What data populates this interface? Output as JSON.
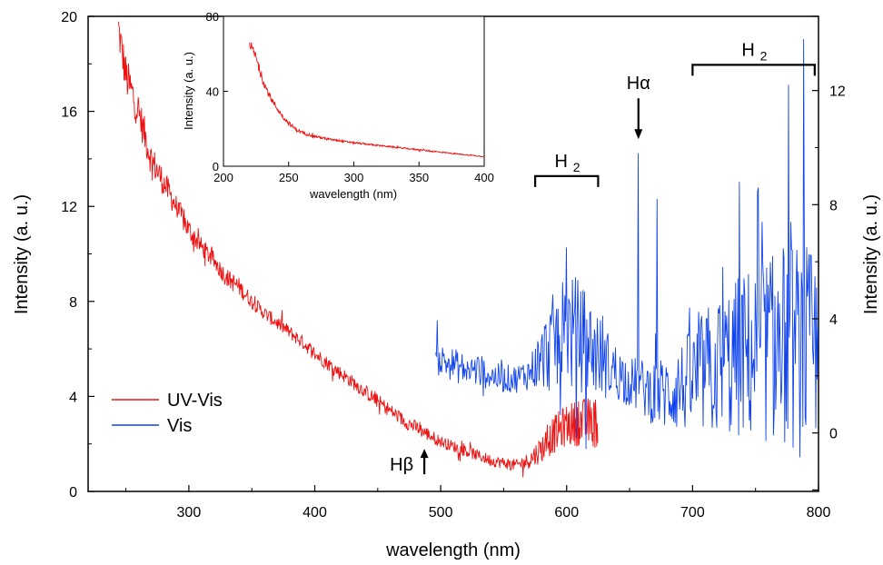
{
  "chart_data": [
    {
      "type": "line",
      "xlabel": "wavelength (nm)",
      "ylabel": "Intensity (a. u.)",
      "ylabel_right": "Intensity (a. u.)",
      "xlim": [
        220,
        800
      ],
      "ylim": [
        0,
        20
      ],
      "ylim_right": [
        -2.05,
        14.6
      ],
      "x_ticks": [
        300,
        400,
        500,
        600,
        700,
        800
      ],
      "y_ticks": [
        0,
        4,
        8,
        12,
        16,
        20
      ],
      "y_ticks_right": [
        0,
        4,
        8,
        12
      ],
      "legend_position": "bottom-left",
      "legend": [
        "UV-Vis",
        "Vis"
      ],
      "series": [
        {
          "name": "UV-Vis",
          "axis": "left",
          "color": "#ee1111",
          "x": [
            244,
            250,
            260,
            270,
            280,
            290,
            300,
            310,
            320,
            330,
            340,
            350,
            360,
            370,
            380,
            390,
            400,
            410,
            420,
            430,
            440,
            450,
            460,
            470,
            480,
            490,
            500,
            510,
            520,
            530,
            540,
            550,
            560,
            570,
            580,
            590,
            600,
            610,
            620,
            625
          ],
          "values": [
            19.5,
            17.5,
            16.0,
            14.0,
            13.0,
            12.0,
            11.0,
            10.3,
            9.7,
            9.0,
            8.6,
            8.0,
            7.5,
            7.1,
            6.7,
            6.3,
            5.8,
            5.4,
            5.0,
            4.6,
            4.2,
            3.8,
            3.4,
            3.0,
            2.7,
            2.4,
            2.1,
            1.9,
            1.7,
            1.5,
            1.3,
            1.2,
            1.1,
            1.3,
            1.8,
            2.4,
            2.8,
            2.9,
            2.9,
            2.9
          ],
          "noise_amplitude": [
            0.9,
            0.9,
            0.8,
            0.7,
            0.6,
            0.5,
            0.5,
            0.4,
            0.4,
            0.4,
            0.4,
            0.3,
            0.3,
            0.3,
            0.3,
            0.3,
            0.3,
            0.3,
            0.3,
            0.3,
            0.3,
            0.3,
            0.3,
            0.3,
            0.3,
            0.3,
            0.25,
            0.25,
            0.25,
            0.25,
            0.25,
            0.25,
            0.25,
            0.35,
            0.6,
            0.8,
            0.9,
            1.0,
            1.1,
            1.1
          ]
        },
        {
          "name": "Vis",
          "axis": "right",
          "color": "#1144ee",
          "x": [
            496,
            510,
            520,
            530,
            540,
            550,
            560,
            570,
            580,
            590,
            600,
            610,
            620,
            630,
            640,
            650,
            660,
            670,
            680,
            690,
            700,
            710,
            720,
            730,
            740,
            750,
            760,
            770,
            780,
            790,
            800
          ],
          "values": [
            2.6,
            2.4,
            2.2,
            2.2,
            2.0,
            1.9,
            1.9,
            2.1,
            2.6,
            3.2,
            3.6,
            3.4,
            3.0,
            2.5,
            2.1,
            1.8,
            1.6,
            1.4,
            1.4,
            1.6,
            1.8,
            2.1,
            2.3,
            2.5,
            2.7,
            2.8,
            3.0,
            3.1,
            3.0,
            2.8,
            2.7
          ],
          "noise_amplitude": [
            0.6,
            0.6,
            0.6,
            0.6,
            0.5,
            0.5,
            0.5,
            0.6,
            1.2,
            1.8,
            2.2,
            2.0,
            1.7,
            1.3,
            1.0,
            0.9,
            1.0,
            1.2,
            1.4,
            1.6,
            1.9,
            2.3,
            2.6,
            2.8,
            3.0,
            3.2,
            3.4,
            3.6,
            3.8,
            3.8,
            3.6
          ],
          "peaks": [
            {
              "x": 600,
              "y": 6.5
            },
            {
              "x": 657,
              "y": 9.8
            },
            {
              "x": 672,
              "y": 8.2
            },
            {
              "x": 737,
              "y": 8.8
            },
            {
              "x": 752,
              "y": 8.6
            },
            {
              "x": 776,
              "y": 12.2
            },
            {
              "x": 788,
              "y": 13.8
            }
          ]
        }
      ],
      "annotations": [
        {
          "label": "H",
          "greek": "β",
          "x": 487,
          "y": 0.8,
          "arrow": "up"
        },
        {
          "label": "H",
          "greek": "α",
          "x": 657,
          "y": 10.2,
          "arrow": "down",
          "axis": "right"
        },
        {
          "label": "H",
          "sub": "2",
          "x_start": 575,
          "x_end": 625,
          "y": 9.0,
          "axis": "right",
          "type": "bracket"
        },
        {
          "label": "H",
          "sub": "2",
          "x_start": 700,
          "x_end": 797,
          "y": 12.9,
          "axis": "right",
          "type": "bracket"
        }
      ]
    },
    {
      "type": "line",
      "inset": true,
      "xlabel": "wavelength (nm)",
      "ylabel": "Intensity (a. u.)",
      "xlim": [
        200,
        400
      ],
      "ylim": [
        0,
        80
      ],
      "x_ticks": [
        200,
        250,
        300,
        350,
        400
      ],
      "y_ticks": [
        0,
        40,
        80
      ],
      "series": [
        {
          "name": "UV-Vis",
          "color": "#ee1111",
          "x": [
            220,
            225,
            230,
            235,
            240,
            245,
            250,
            255,
            260,
            265,
            270,
            280,
            290,
            300,
            310,
            320,
            330,
            340,
            350,
            360,
            370,
            380,
            390,
            400
          ],
          "values": [
            66,
            58,
            46,
            38,
            32,
            27,
            23,
            20,
            18,
            17,
            16,
            14.5,
            13.5,
            12.5,
            11.8,
            11,
            10.3,
            9.5,
            8.8,
            8,
            7.3,
            6.5,
            5.8,
            5.2
          ],
          "noise_amplitude": [
            2.5,
            2.5,
            2,
            1.8,
            1.5,
            1.3,
            1.2,
            1.1,
            1,
            0.8,
            0.7,
            0.6,
            0.5,
            0.5,
            0.5,
            0.4,
            0.4,
            0.4,
            0.4,
            0.4,
            0.3,
            0.3,
            0.3,
            0.3
          ]
        }
      ]
    }
  ]
}
